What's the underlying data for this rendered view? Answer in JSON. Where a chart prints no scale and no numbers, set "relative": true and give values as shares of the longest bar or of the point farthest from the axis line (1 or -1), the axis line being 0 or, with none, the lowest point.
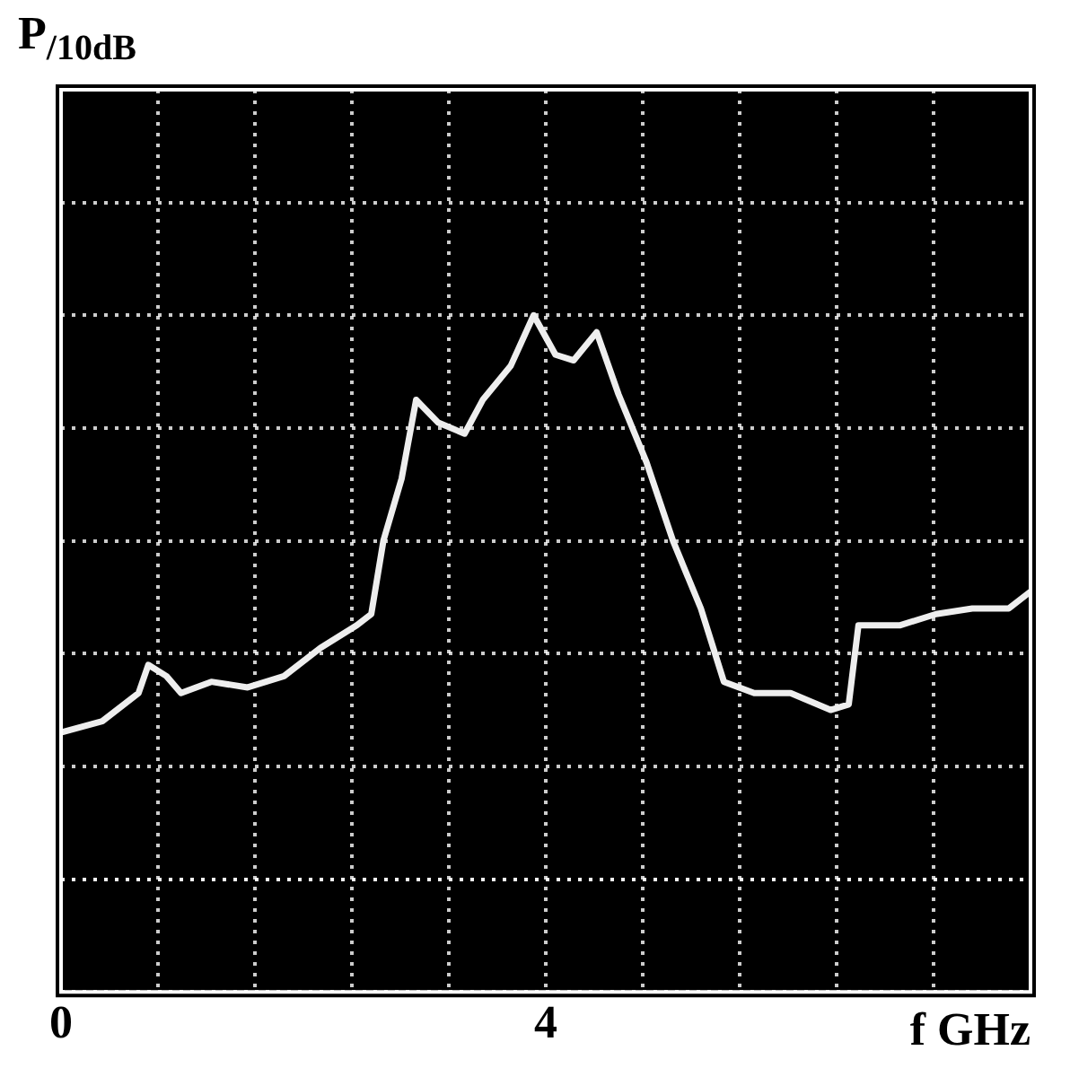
{
  "chart_data": {
    "type": "line",
    "relative": true,
    "annotations": [
      "P$_{/10dB}$"
    ],
    "xlabel": "f GHz",
    "color": "#eeeeee",
    "grid": true,
    "marker": "none",
    "line_style": "solid",
    "xlim": [
      0,
      8
    ],
    "xticks": [
      0,
      {
        "value": 0.8,
        "label": null
      },
      {
        "value": 1.6,
        "label": null
      },
      {
        "value": 2.4,
        "label": null
      },
      {
        "value": 3.2,
        "label": null
      },
      4,
      {
        "value": 4.8,
        "label": null
      },
      {
        "value": 5.6,
        "label": null
      },
      {
        "value": 6.4,
        "label": null
      },
      {
        "value": 7.2,
        "label": null
      },
      {
        "value": 8,
        "label": null
      }
    ],
    "x": [
      0,
      0.34,
      0.64,
      0.72,
      0.87,
      0.99,
      1.24,
      1.54,
      1.84,
      2.14,
      2.44,
      2.56,
      2.66,
      2.81,
      2.93,
      3.11,
      3.33,
      3.48,
      3.71,
      3.9,
      4.08,
      4.23,
      4.42,
      4.6,
      4.83,
      5.05,
      5.28,
      5.47,
      5.72,
      6.02,
      6.35,
      6.5,
      6.58,
      6.92,
      7.22,
      7.52,
      7.82,
      8
    ],
    "values": [
      0.26,
      0.28,
      0.33,
      0.38,
      0.36,
      0.33,
      0.35,
      0.34,
      0.36,
      0.41,
      0.45,
      0.47,
      0.6,
      0.71,
      0.85,
      0.81,
      0.79,
      0.85,
      0.91,
      1,
      0.93,
      0.92,
      0.97,
      0.86,
      0.74,
      0.6,
      0.48,
      0.35,
      0.33,
      0.33,
      0.3,
      0.31,
      0.45,
      0.45,
      0.47,
      0.48,
      0.48,
      0.51
    ]
  }
}
